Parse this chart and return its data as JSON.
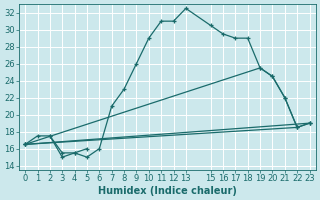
{
  "xlabel": "Humidex (Indice chaleur)",
  "xlim": [
    -0.5,
    23.5
  ],
  "ylim": [
    13.5,
    33
  ],
  "xticks": [
    0,
    1,
    2,
    3,
    4,
    5,
    6,
    7,
    8,
    9,
    10,
    11,
    12,
    13,
    15,
    16,
    17,
    18,
    19,
    20,
    21,
    22,
    23
  ],
  "yticks": [
    14,
    16,
    18,
    20,
    22,
    24,
    26,
    28,
    30,
    32
  ],
  "bg_color": "#cce8ec",
  "line_color": "#1a6b6b",
  "grid_color": "#ffffff",
  "lines": [
    {
      "x": [
        2,
        3,
        4,
        5,
        6,
        7,
        8,
        9,
        10,
        11,
        12,
        13,
        15,
        16,
        17,
        18,
        19,
        20,
        21,
        22,
        23
      ],
      "y": [
        17.5,
        15.0,
        15.5,
        15.0,
        16.0,
        21.0,
        23.0,
        26.0,
        29.0,
        31.0,
        31.0,
        32.5,
        30.5,
        29.5,
        29.0,
        29.0,
        25.5,
        24.5,
        22.0,
        18.5,
        19.0
      ]
    },
    {
      "x": [
        0,
        23
      ],
      "y": [
        16.5,
        19.0
      ]
    },
    {
      "x": [
        0,
        22
      ],
      "y": [
        16.5,
        18.5
      ]
    },
    {
      "x": [
        0,
        19,
        20,
        21,
        22,
        23
      ],
      "y": [
        16.5,
        25.5,
        24.5,
        22.0,
        18.5,
        19.0
      ]
    },
    {
      "x": [
        0,
        1,
        2,
        3,
        4,
        5
      ],
      "y": [
        16.5,
        17.5,
        17.5,
        15.5,
        15.5,
        16.0
      ]
    }
  ],
  "axis_fontsize": 7,
  "tick_fontsize": 6,
  "figsize": [
    3.2,
    2.0
  ],
  "dpi": 100
}
